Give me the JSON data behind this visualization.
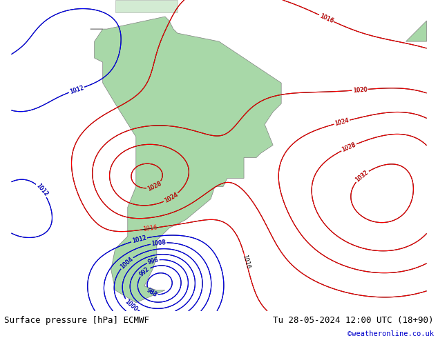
{
  "title_left": "Surface pressure [hPa] ECMWF",
  "title_right": "Tu 28-05-2024 12:00 UTC (18+90)",
  "copyright": "©weatheronline.co.uk",
  "bg_color": "#f0f0f0",
  "land_color": "#a8d8a8",
  "sea_color": "#e8e8f0",
  "fig_width": 6.34,
  "fig_height": 4.9,
  "dpi": 100,
  "bottom_bar_color": "#d8d8d8",
  "title_fontsize": 9,
  "copyright_color": "#0000cc",
  "copyright_fontsize": 7.5
}
